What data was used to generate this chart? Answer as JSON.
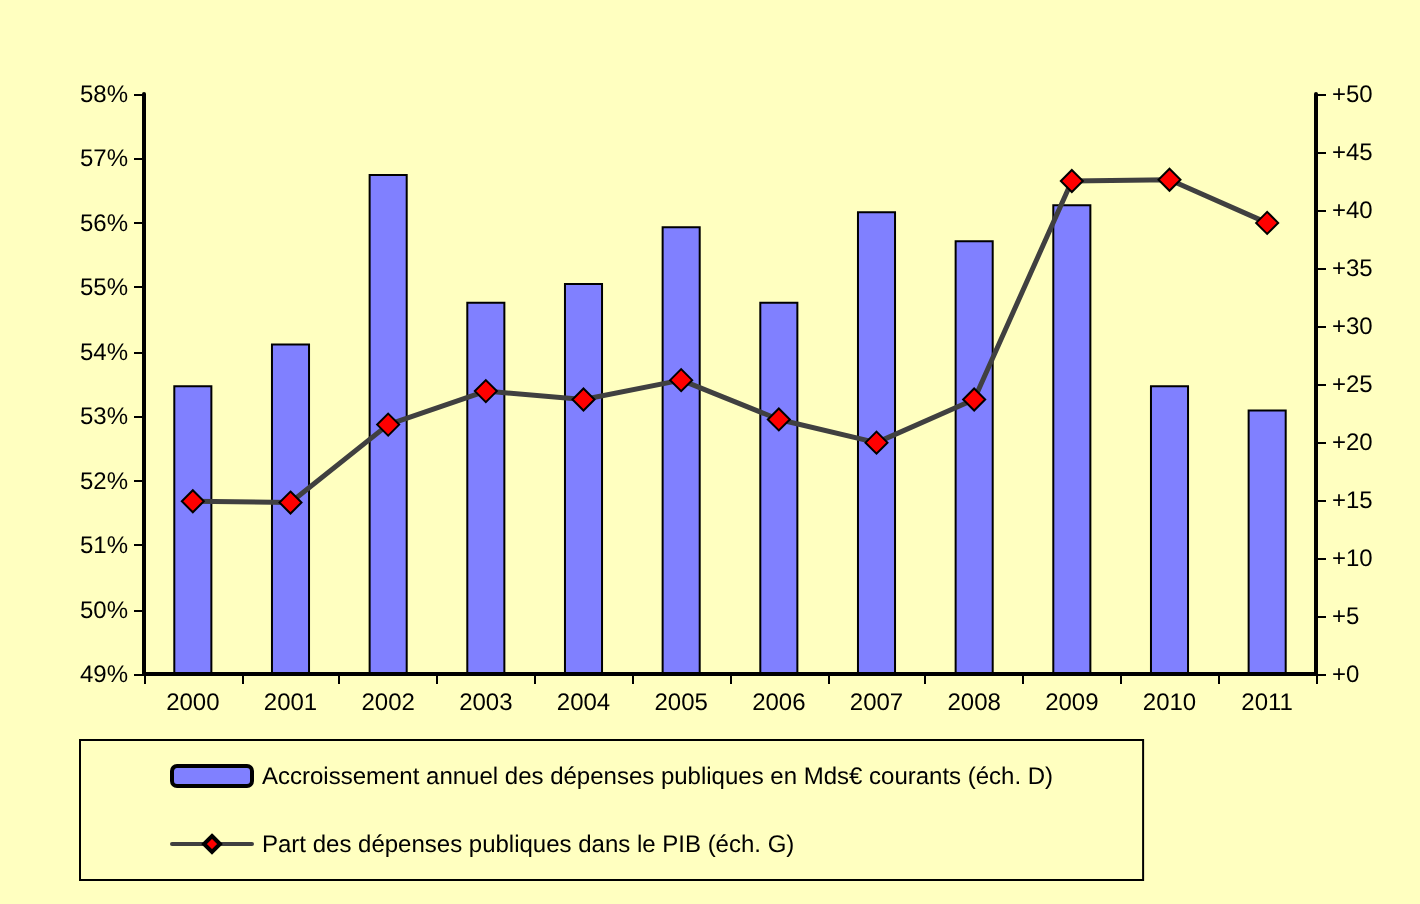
{
  "chart_data": {
    "type": "bar",
    "categories": [
      "2000",
      "2001",
      "2002",
      "2003",
      "2004",
      "2005",
      "2006",
      "2007",
      "2008",
      "2009",
      "2010",
      "2011"
    ],
    "series": [
      {
        "name": "Accroissement annuel des dépenses publiques en Mds€ courants (éch. D)",
        "axis": "y2",
        "color": "#8080ff",
        "values": [
          24.9,
          28.5,
          43.1,
          32.1,
          33.7,
          38.6,
          32.1,
          39.9,
          37.4,
          40.5,
          24.9,
          22.8
        ]
      },
      {
        "name": "Part des dépenses publiques dans le PIB (éch. G)",
        "type": "line",
        "color": "#404040",
        "marker": "diamond",
        "values": [
          51.68,
          51.66,
          52.87,
          53.39,
          53.26,
          53.56,
          52.95,
          52.59,
          53.26,
          56.65,
          56.67,
          56.0
        ]
      }
    ],
    "ylim": [
      49,
      58
    ],
    "yticks": [
      {
        "value": 49,
        "label": "49%"
      },
      {
        "value": 50,
        "label": "50%"
      },
      {
        "value": 51,
        "label": "51%"
      },
      {
        "value": 52,
        "label": "52%"
      },
      {
        "value": 53,
        "label": "53%"
      },
      {
        "value": 54,
        "label": "54%"
      },
      {
        "value": 55,
        "label": "55%"
      },
      {
        "value": 56,
        "label": "56%"
      },
      {
        "value": 57,
        "label": "57%"
      },
      {
        "value": 58,
        "label": "58%"
      }
    ],
    "y2lim": [
      0,
      50
    ],
    "y2ticks": [
      {
        "value": 0,
        "label": "+0"
      },
      {
        "value": 5,
        "label": "+5"
      },
      {
        "value": 10,
        "label": "+10"
      },
      {
        "value": 15,
        "label": "+15"
      },
      {
        "value": 20,
        "label": "+20"
      },
      {
        "value": 25,
        "label": "+25"
      },
      {
        "value": 30,
        "label": "+30"
      },
      {
        "value": 35,
        "label": "+35"
      },
      {
        "value": 40,
        "label": "+40"
      },
      {
        "value": 45,
        "label": "+45"
      },
      {
        "value": 50,
        "label": "+50"
      }
    ],
    "grid": false,
    "legend": "bottom"
  }
}
